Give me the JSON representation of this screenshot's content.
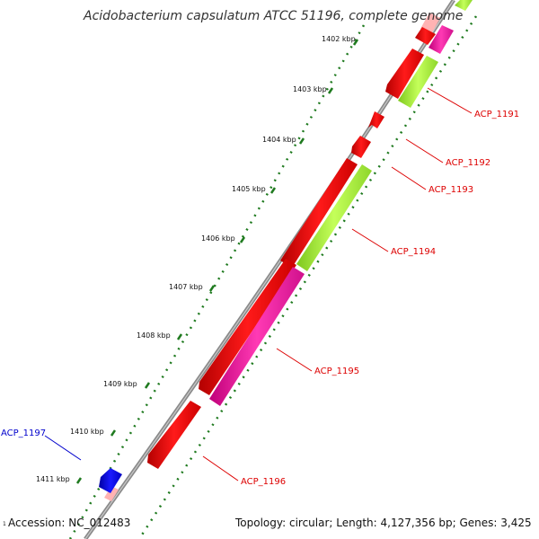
{
  "title": "Acidobacterium capsulatum ATCC 51196, complete genome",
  "accession": "Accession: NC_012483",
  "accession_prefix": "1",
  "topology": "Topology: circular; Length: 4,127,356 bp; Genes: 3,425",
  "kbp_labels": [
    "1402 kbp",
    "1403 kbp",
    "1404 kbp",
    "1405 kbp",
    "1406 kbp",
    "1407 kbp",
    "1408 kbp",
    "1409 kbp",
    "1410 kbp",
    "1411 kbp"
  ],
  "gene_labels": [
    "ACP_1191",
    "ACP_1192",
    "ACP_1193",
    "ACP_1194",
    "ACP_1195",
    "ACP_1196",
    "ACP_1197"
  ],
  "colors": {
    "red": "#ff0000",
    "magenta": "#ff1aa8",
    "lime": "#a8f03c",
    "blue": "#0000ee",
    "backbone": "#888888",
    "tick": "#1f7a1f",
    "label_red": "#dd0000",
    "label_blue": "#0000cc"
  }
}
